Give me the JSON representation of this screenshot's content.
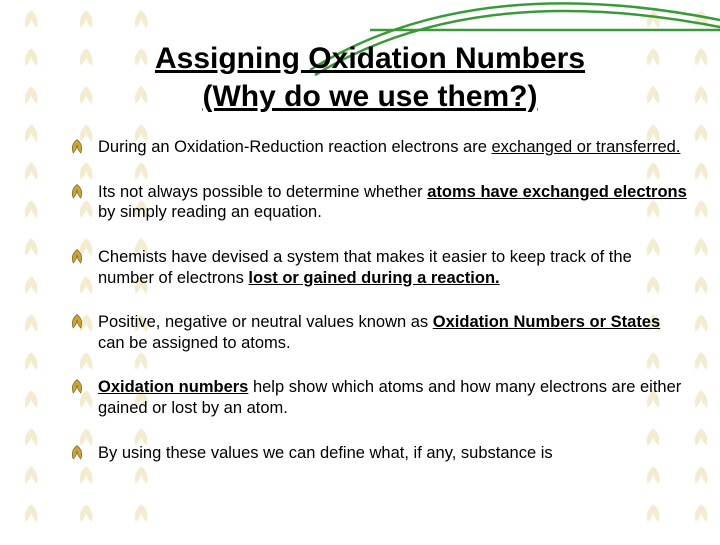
{
  "background": {
    "leaf_color": "#d0b848",
    "pattern_opacity": 0.25,
    "columns": [
      0,
      55,
      110,
      622,
      670
    ]
  },
  "swoosh": {
    "stroke_color": "#3a9a3a",
    "stroke_width": 2.5
  },
  "bullet_icon": {
    "fill": "#c9a43a",
    "stroke": "#6b5a1f"
  },
  "title": {
    "line1": "Assigning Oxidation Numbers",
    "line2": "(Why do we use them?)",
    "fontsize": 30,
    "color": "#000000"
  },
  "bullets": [
    {
      "segments": [
        {
          "t": "During an Oxidation-Reduction reaction electrons are "
        },
        {
          "t": "exchanged or transferred.",
          "u": true
        }
      ]
    },
    {
      "segments": [
        {
          "t": "Its not always possible to determine whether "
        },
        {
          "t": "atoms have exchanged electrons",
          "u": true,
          "b": true
        },
        {
          "t": " by simply reading an equation."
        }
      ]
    },
    {
      "segments": [
        {
          "t": "Chemists have devised a system that makes it easier to keep track of the number of electrons "
        },
        {
          "t": "lost or gained during a reaction.",
          "u": true,
          "b": true
        }
      ]
    },
    {
      "segments": [
        {
          "t": "Positive, negative or neutral values known as "
        },
        {
          "t": "Oxidation Numbers or States",
          "u": true,
          "b": true
        },
        {
          "t": " can be assigned to atoms."
        }
      ]
    },
    {
      "segments": [
        {
          "t": "Oxidation numbers",
          "u": true,
          "b": true
        },
        {
          "t": " help show which atoms and how many electrons are either gained or lost by an atom."
        }
      ]
    },
    {
      "segments": [
        {
          "t": "By using these values we can define what, if any, substance is"
        }
      ]
    }
  ],
  "body_fontsize": 16.5,
  "text_color": "#000000"
}
